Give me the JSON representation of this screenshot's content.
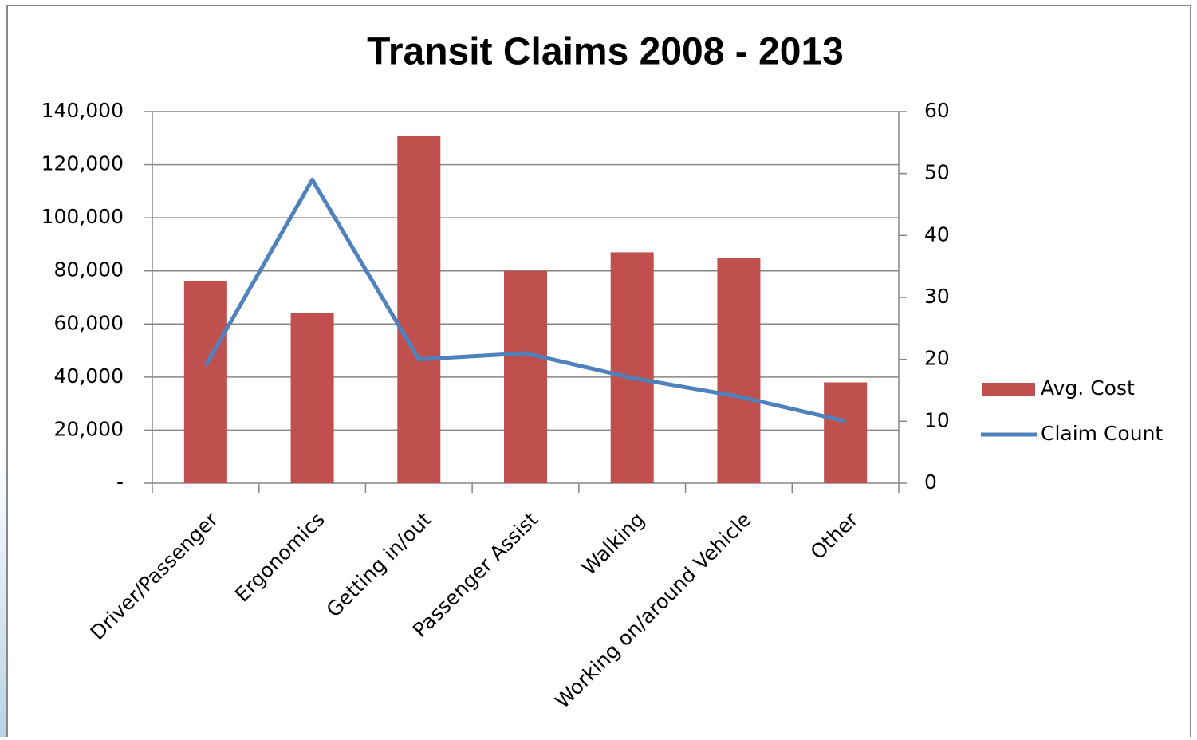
{
  "chart_data": {
    "type": "bar",
    "title": "Transit Claims 2008 - 2013",
    "categories": [
      "Driver/Passenger",
      "Ergonomics",
      "Getting in/out",
      "Passenger Assist",
      "Walking",
      "Working on/around Vehicle",
      "Other"
    ],
    "series": [
      {
        "name": "Avg. Cost",
        "type": "bar",
        "color": "#c0504d",
        "values": [
          76000,
          64000,
          131000,
          80000,
          87000,
          85000,
          38000
        ]
      },
      {
        "name": "Claim Count",
        "type": "line",
        "axis": "y2",
        "color": "#4f81bd",
        "values": [
          19,
          49,
          20,
          21,
          17,
          14,
          10
        ]
      }
    ],
    "ylim": [
      0,
      140000
    ],
    "yticks": [
      {
        "value": 0,
        "label": "-"
      },
      {
        "value": 20000,
        "label": "20,000"
      },
      {
        "value": 40000,
        "label": "40,000"
      },
      {
        "value": 60000,
        "label": "60,000"
      },
      {
        "value": 80000,
        "label": "80,000"
      },
      {
        "value": 100000,
        "label": "100,000"
      },
      {
        "value": 120000,
        "label": "120,000"
      },
      {
        "value": 140000,
        "label": "140,000"
      }
    ],
    "y2lim": [
      0,
      60
    ],
    "y2ticks": [
      0,
      10,
      20,
      30,
      40,
      50,
      60
    ],
    "grid": true,
    "legend": "right"
  }
}
